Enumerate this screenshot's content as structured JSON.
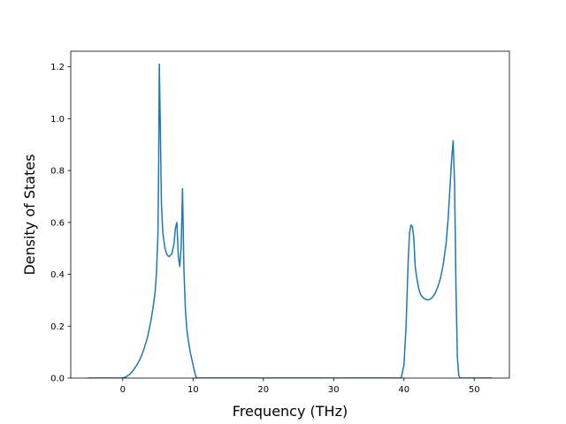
{
  "chart_data": {
    "type": "line",
    "title": "",
    "xlabel": "Frequency (THz)",
    "ylabel": "Density of States",
    "xlim": [
      -7.4,
      55.0
    ],
    "ylim": [
      0.0,
      1.26
    ],
    "xticks": [
      0,
      10,
      20,
      30,
      40,
      50
    ],
    "yticks": [
      "0.0",
      "0.2",
      "0.4",
      "0.6",
      "0.8",
      "1.0",
      "1.2"
    ],
    "grid": false,
    "legend": "none",
    "colors": {
      "line": "#1f77b4",
      "axes": "#000000",
      "background": "#ffffff"
    },
    "series": [
      {
        "x": [
          -5.0,
          -0.5,
          0.0,
          0.5,
          1.0,
          1.5,
          2.0,
          2.5,
          3.0,
          3.5,
          4.0,
          4.3,
          4.6,
          4.8,
          5.0,
          5.1,
          5.2,
          5.35,
          5.5,
          5.7,
          6.0,
          6.3,
          6.6,
          7.0,
          7.3,
          7.5,
          7.7,
          7.9,
          8.1,
          8.3,
          8.5,
          8.7,
          8.9,
          9.1,
          9.3,
          9.6,
          10.0,
          10.4,
          10.6,
          11.0,
          20.0,
          30.0,
          39.6,
          40.0,
          40.3,
          40.6,
          40.8,
          41.0,
          41.2,
          41.4,
          41.6,
          41.8,
          42.1,
          42.4,
          42.8,
          43.2,
          43.6,
          44.0,
          44.4,
          44.8,
          45.2,
          45.6,
          46.0,
          46.3,
          46.6,
          46.8,
          47.0,
          47.2,
          47.4,
          47.6,
          47.8,
          48.0,
          52.5
        ],
        "y": [
          0.0,
          0.0,
          0.0,
          0.005,
          0.015,
          0.03,
          0.05,
          0.075,
          0.11,
          0.155,
          0.22,
          0.27,
          0.33,
          0.41,
          0.55,
          0.8,
          1.21,
          0.95,
          0.67,
          0.56,
          0.5,
          0.475,
          0.468,
          0.48,
          0.52,
          0.58,
          0.6,
          0.47,
          0.43,
          0.5,
          0.73,
          0.42,
          0.27,
          0.19,
          0.15,
          0.1,
          0.05,
          0.005,
          0.0,
          0.0,
          0.0,
          0.0,
          0.0,
          0.05,
          0.2,
          0.45,
          0.56,
          0.59,
          0.585,
          0.54,
          0.43,
          0.39,
          0.345,
          0.32,
          0.308,
          0.302,
          0.302,
          0.31,
          0.325,
          0.35,
          0.385,
          0.44,
          0.52,
          0.62,
          0.76,
          0.85,
          0.915,
          0.75,
          0.35,
          0.08,
          0.01,
          0.0,
          0.0
        ]
      }
    ]
  }
}
